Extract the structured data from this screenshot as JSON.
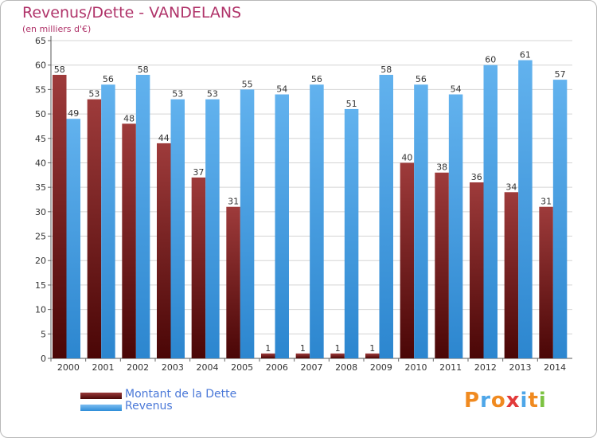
{
  "chart_data": {
    "type": "bar",
    "title": "Revenus/Dette - VANDELANS",
    "subtitle": "(en milliers d'€)",
    "categories": [
      "2000",
      "2001",
      "2002",
      "2003",
      "2004",
      "2005",
      "2006",
      "2007",
      "2008",
      "2009",
      "2010",
      "2011",
      "2012",
      "2013",
      "2014"
    ],
    "series": [
      {
        "name": "Montant de la Dette",
        "color": "#7a1e1e",
        "values": [
          58,
          53,
          48,
          44,
          37,
          31,
          1,
          1,
          1,
          1,
          40,
          38,
          36,
          34,
          31
        ]
      },
      {
        "name": "Revenus",
        "color": "#4ea6e8",
        "values": [
          49,
          56,
          58,
          53,
          53,
          55,
          54,
          56,
          51,
          58,
          56,
          54,
          60,
          61,
          57
        ]
      }
    ],
    "ylim": [
      0,
      65
    ],
    "yticks": [
      0,
      5,
      10,
      15,
      20,
      25,
      30,
      35,
      40,
      45,
      50,
      55,
      60,
      65
    ],
    "grid": true,
    "legend": "bottom-left",
    "data_labels": true
  },
  "brand": {
    "logo_text": "Proxiti",
    "colors": [
      "#f08a20",
      "#4ea6e8",
      "#f08a20",
      "#e23a3a",
      "#4ea6e8",
      "#f08a20",
      "#7cc242"
    ]
  }
}
